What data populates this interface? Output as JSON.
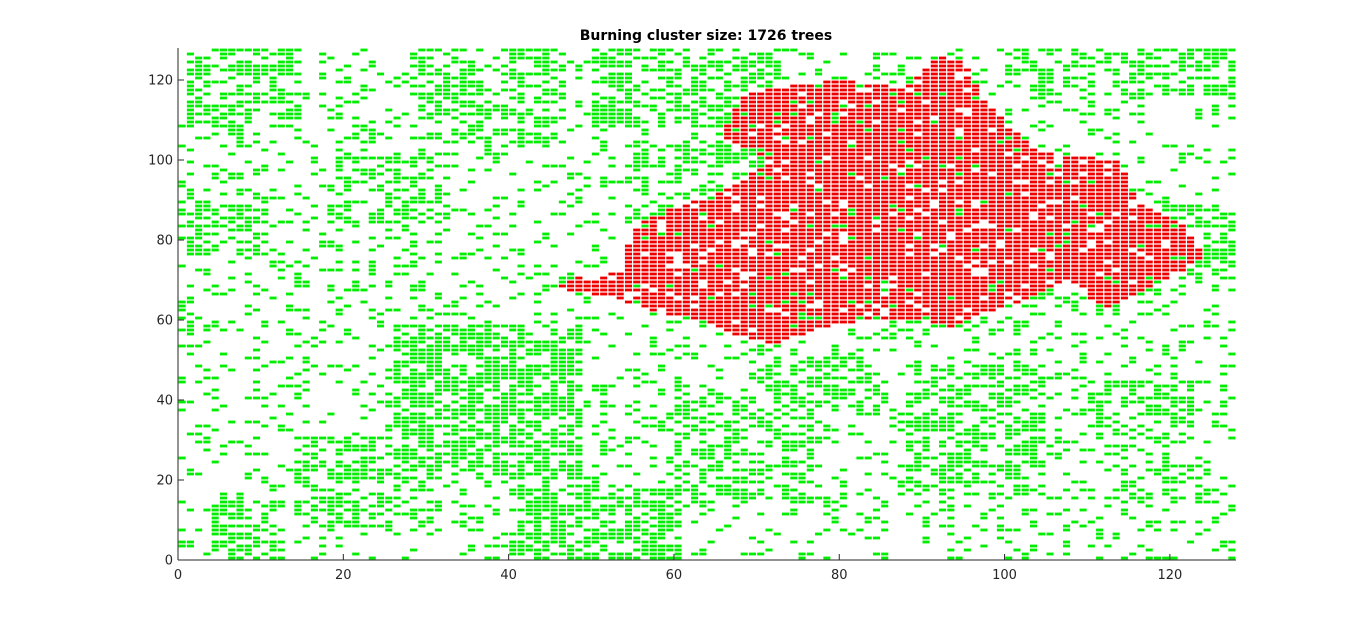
{
  "chart_data": {
    "type": "scatter",
    "title": "Burning cluster size: 1726 trees",
    "xlabel": "",
    "ylabel": "",
    "xlim": [
      0,
      128
    ],
    "ylim": [
      0,
      128
    ],
    "xticks": [
      0,
      20,
      40,
      60,
      80,
      100,
      120
    ],
    "yticks": [
      0,
      20,
      40,
      60,
      80,
      100,
      120
    ],
    "grid": false,
    "legend": "none",
    "series": [
      {
        "state": "unburnt",
        "color": "#00ee00",
        "regions": [
          {
            "x": [
              1,
              14
            ],
            "y": [
              108,
              127
            ],
            "density": 0.55
          },
          {
            "x": [
              1,
              10
            ],
            "y": [
              76,
              90
            ],
            "density": 0.55
          },
          {
            "x": [
              18,
              32
            ],
            "y": [
              84,
              100
            ],
            "density": 0.45
          },
          {
            "x": [
              28,
              46
            ],
            "y": [
              104,
              127
            ],
            "density": 0.5
          },
          {
            "x": [
              50,
              72
            ],
            "y": [
              108,
              127
            ],
            "density": 0.55
          },
          {
            "x": [
              54,
              72
            ],
            "y": [
              84,
              104
            ],
            "density": 0.5
          },
          {
            "x": [
              100,
              127
            ],
            "y": [
              116,
              127
            ],
            "density": 0.5
          },
          {
            "x": [
              120,
              127
            ],
            "y": [
              70,
              88
            ],
            "density": 0.55
          },
          {
            "x": [
              26,
              48
            ],
            "y": [
              20,
              58
            ],
            "density": 0.7
          },
          {
            "x": [
              14,
              30
            ],
            "y": [
              8,
              30
            ],
            "density": 0.5
          },
          {
            "x": [
              4,
              12
            ],
            "y": [
              0,
              14
            ],
            "density": 0.55
          },
          {
            "x": [
              40,
              60
            ],
            "y": [
              0,
              18
            ],
            "density": 0.65
          },
          {
            "x": [
              60,
              76
            ],
            "y": [
              14,
              40
            ],
            "density": 0.55
          },
          {
            "x": [
              70,
              84
            ],
            "y": [
              36,
              52
            ],
            "density": 0.45
          },
          {
            "x": [
              88,
              104
            ],
            "y": [
              16,
              48
            ],
            "density": 0.55
          },
          {
            "x": [
              110,
              122
            ],
            "y": [
              28,
              44
            ],
            "density": 0.45
          },
          {
            "x": [
              114,
              124
            ],
            "y": [
              14,
              24
            ],
            "density": 0.45
          },
          {
            "x": [
              0,
              128
            ],
            "y": [
              0,
              128
            ],
            "density": 0.18
          }
        ]
      },
      {
        "state": "burning",
        "color": "#ee0000",
        "cluster_size": 1726,
        "outline": [
          [
            46,
            68
          ],
          [
            52,
            66
          ],
          [
            58,
            62
          ],
          [
            64,
            60
          ],
          [
            68,
            56
          ],
          [
            72,
            54
          ],
          [
            78,
            58
          ],
          [
            84,
            60
          ],
          [
            90,
            60
          ],
          [
            94,
            58
          ],
          [
            98,
            62
          ],
          [
            104,
            66
          ],
          [
            108,
            70
          ],
          [
            112,
            62
          ],
          [
            116,
            66
          ],
          [
            120,
            70
          ],
          [
            124,
            76
          ],
          [
            122,
            84
          ],
          [
            116,
            90
          ],
          [
            114,
            100
          ],
          [
            104,
            102
          ],
          [
            100,
            110
          ],
          [
            97,
            116
          ],
          [
            96,
            124
          ],
          [
            92,
            126
          ],
          [
            88,
            118
          ],
          [
            80,
            120
          ],
          [
            72,
            118
          ],
          [
            68,
            116
          ],
          [
            66,
            106
          ],
          [
            72,
            100
          ],
          [
            66,
            92
          ],
          [
            60,
            88
          ],
          [
            56,
            84
          ],
          [
            54,
            78
          ],
          [
            54,
            72
          ],
          [
            46,
            70
          ]
        ]
      }
    ]
  }
}
